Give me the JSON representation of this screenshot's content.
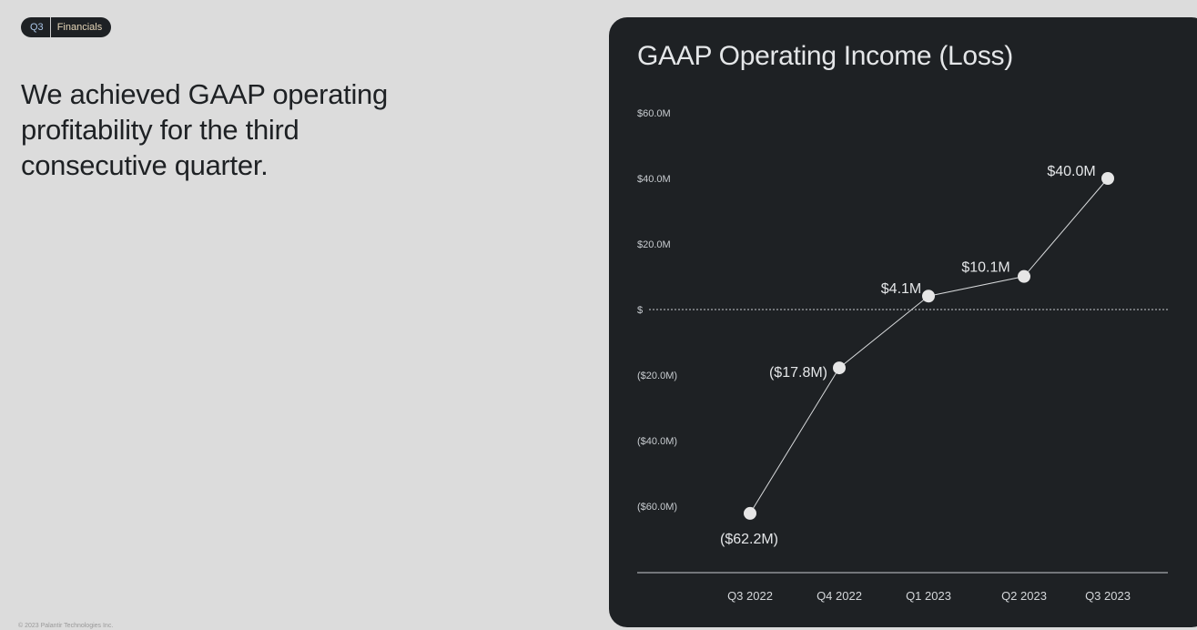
{
  "badge": {
    "quarter": "Q3",
    "section": "Financials"
  },
  "headline": "We achieved GAAP operating profitability for the third consecutive quarter.",
  "footer": "© 2023 Palantir Technologies Inc.",
  "chart_data": {
    "type": "line",
    "title": "GAAP Operating Income (Loss)",
    "categories": [
      "Q3 2022",
      "Q4 2022",
      "Q1 2023",
      "Q2 2023",
      "Q3 2023"
    ],
    "values": [
      -62.2,
      -17.8,
      4.1,
      10.1,
      40.0
    ],
    "data_labels": [
      "($62.2M)",
      "($17.8M)",
      "$4.1M",
      "$10.1M",
      "$40.0M"
    ],
    "yticks": [
      60,
      40,
      20,
      0,
      -20,
      -40,
      -60
    ],
    "ytick_labels": [
      "$60.0M",
      "$40.0M",
      "$20.0M",
      "$",
      "($20.0M)",
      "($40.0M)",
      "($60.0M)"
    ],
    "ylim": [
      -60,
      60
    ],
    "xlabel": "",
    "ylabel": "",
    "zero_line": "dotted",
    "grid": false,
    "colors": {
      "line": "#d8dadc",
      "point": "#e6e6e6",
      "background": "#1e2124"
    }
  }
}
